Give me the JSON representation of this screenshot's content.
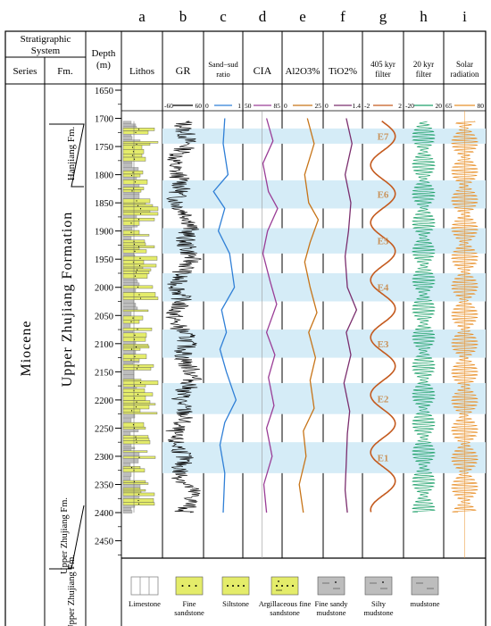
{
  "panel_letters": [
    "a",
    "b",
    "c",
    "d",
    "e",
    "f",
    "g",
    "h",
    "i"
  ],
  "header": {
    "strat_system": [
      "Stratigraphic",
      "System"
    ],
    "series": "Series",
    "fm": "Fm.",
    "depth": [
      "Depth",
      "(m)"
    ],
    "lithos": "Lithos",
    "gr": "GR",
    "sand_mud": [
      "Sand−sud",
      "ratio"
    ],
    "cia": "CIA",
    "al2o3": "Al2O3%",
    "tio2": "TiO2%",
    "filter405": [
      "405 kyr",
      "filter"
    ],
    "filter20": [
      "20 kyr",
      "filter"
    ],
    "solar": [
      "Solar",
      "radiation"
    ]
  },
  "scales": {
    "gr": [
      "-60",
      "60"
    ],
    "sand": [
      "0",
      "1"
    ],
    "cia": [
      "50",
      "85"
    ],
    "al2o3": [
      "0",
      "25"
    ],
    "tio2": [
      "0",
      "1.4"
    ],
    "f405": [
      "-2",
      "2"
    ],
    "f20": [
      "-20",
      "20"
    ],
    "solar": [
      "65",
      "80"
    ]
  },
  "colors": {
    "band": "#d5ecf7",
    "sand": "#2f7fd6",
    "cia": "#9a3d96",
    "al2o3": "#c77418",
    "tio2": "#7b2e6e",
    "f405": "#c45a1e",
    "f20": "#1fa16a",
    "solar": "#e8902a",
    "sandstone": "#e4ec6a",
    "litho_gray": "#bdbdbd",
    "e_label": "#c9925a"
  },
  "strat": {
    "series_name": "Miocene",
    "formation_name": "Upper Zhujiang Formation",
    "member_top": "Hanjiang Fm.",
    "member_lower": "Upper Zhujiang Fm.",
    "member_bottom": "Upper Zhujiang Fm."
  },
  "depth_ticks": [
    "1650",
    "1700",
    "1750",
    "1800",
    "1850",
    "1900",
    "1950",
    "2000",
    "2050",
    "2100",
    "2150",
    "2200",
    "2250",
    "2300",
    "2350",
    "2400",
    "2450"
  ],
  "depth_values": [
    1650,
    1700,
    1750,
    1800,
    1850,
    1900,
    1950,
    2000,
    2050,
    2100,
    2150,
    2200,
    2250,
    2300,
    2350,
    2400,
    2450
  ],
  "cycles": [
    {
      "label": "E7",
      "top": 1718,
      "bottom": 1745
    },
    {
      "label": "E6",
      "top": 1810,
      "bottom": 1860
    },
    {
      "label": "E5",
      "top": 1895,
      "bottom": 1940
    },
    {
      "label": "E4",
      "top": 1975,
      "bottom": 2025
    },
    {
      "label": "E3",
      "top": 2075,
      "bottom": 2125
    },
    {
      "label": "E2",
      "top": 2170,
      "bottom": 2225
    },
    {
      "label": "E1",
      "top": 2275,
      "bottom": 2330
    }
  ],
  "legend": [
    {
      "label": "Limestone",
      "type": "limestone"
    },
    {
      "label": "Fine sandstone",
      "type": "finesand"
    },
    {
      "label": "Siltstone",
      "type": "siltstone"
    },
    {
      "label": "Argillaceous fine sandstone",
      "type": "argsand"
    },
    {
      "label": "Fine sandy mudstone",
      "type": "sandymud"
    },
    {
      "label": "Silty mudstone",
      "type": "siltymud"
    },
    {
      "label": "mudstone",
      "type": "mudstone"
    }
  ],
  "chart_data": {
    "type": "line",
    "depth_range": [
      1650,
      2400
    ],
    "series": [
      {
        "name": "Sand−sud ratio",
        "range": [
          0,
          1
        ],
        "points": [
          [
            1700,
            0.55
          ],
          [
            1745,
            0.5
          ],
          [
            1800,
            0.65
          ],
          [
            1830,
            0.2
          ],
          [
            1860,
            0.55
          ],
          [
            1900,
            0.35
          ],
          [
            1940,
            0.7
          ],
          [
            2000,
            0.85
          ],
          [
            2040,
            0.45
          ],
          [
            2080,
            0.6
          ],
          [
            2110,
            0.4
          ],
          [
            2150,
            0.6
          ],
          [
            2200,
            0.9
          ],
          [
            2240,
            0.55
          ],
          [
            2280,
            0.4
          ],
          [
            2330,
            0.55
          ],
          [
            2400,
            0.5
          ]
        ]
      },
      {
        "name": "CIA",
        "range": [
          50,
          85
        ],
        "points": [
          [
            1700,
            72
          ],
          [
            1740,
            79
          ],
          [
            1780,
            68
          ],
          [
            1830,
            74
          ],
          [
            1860,
            84
          ],
          [
            1900,
            73
          ],
          [
            1940,
            68
          ],
          [
            1990,
            76
          ],
          [
            2030,
            83
          ],
          [
            2080,
            72
          ],
          [
            2120,
            81
          ],
          [
            2160,
            74
          ],
          [
            2210,
            80
          ],
          [
            2250,
            72
          ],
          [
            2300,
            78
          ],
          [
            2350,
            69
          ],
          [
            2400,
            72
          ]
        ]
      },
      {
        "name": "Al2O3%",
        "range": [
          0,
          25
        ],
        "points": [
          [
            1700,
            16
          ],
          [
            1745,
            21
          ],
          [
            1800,
            14
          ],
          [
            1850,
            17
          ],
          [
            1880,
            24
          ],
          [
            1920,
            18
          ],
          [
            1955,
            14
          ],
          [
            2000,
            18
          ],
          [
            2045,
            23
          ],
          [
            2080,
            17
          ],
          [
            2125,
            22
          ],
          [
            2165,
            18
          ],
          [
            2215,
            21
          ],
          [
            2255,
            13
          ],
          [
            2300,
            15
          ],
          [
            2350,
            10
          ],
          [
            2400,
            13
          ]
        ]
      },
      {
        "name": "TiO2%",
        "range": [
          0,
          1.4
        ],
        "points": [
          [
            1700,
            0.85
          ],
          [
            1745,
            1.1
          ],
          [
            1800,
            0.8
          ],
          [
            1850,
            1.05
          ],
          [
            1900,
            0.95
          ],
          [
            1945,
            0.8
          ],
          [
            2000,
            0.9
          ],
          [
            2040,
            1.3
          ],
          [
            2080,
            0.85
          ],
          [
            2120,
            1.05
          ],
          [
            2170,
            0.75
          ],
          [
            2220,
            1.0
          ],
          [
            2260,
            0.9
          ],
          [
            2310,
            0.85
          ],
          [
            2360,
            0.8
          ],
          [
            2400,
            0.9
          ]
        ]
      },
      {
        "name": "405 kyr filter",
        "range": [
          -2,
          2
        ],
        "period": 102,
        "phase_depth": 1732,
        "amplitude": 1.45
      },
      {
        "name": "20 kyr filter",
        "range": [
          -20,
          20
        ],
        "wavelength": 6,
        "amplitude": 9
      },
      {
        "name": "Solar radiation",
        "range": [
          65,
          80
        ],
        "wavelength": 6,
        "amplitude": 6
      }
    ]
  }
}
